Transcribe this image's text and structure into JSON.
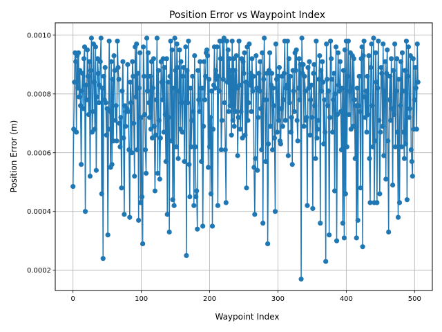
{
  "chart_data": {
    "type": "line",
    "title": "Position Error vs Waypoint Index",
    "xlabel": "Waypoint Index",
    "ylabel": "Position Error (m)",
    "xlim": [
      -26,
      526
    ],
    "ylim": [
      0.000131,
      0.001042
    ],
    "xticks": [
      0,
      100,
      200,
      300,
      400,
      500
    ],
    "xtick_labels": [
      "0",
      "100",
      "200",
      "300",
      "400",
      "500"
    ],
    "yticks": [
      0.0002,
      0.0004,
      0.0006,
      0.0008,
      0.001
    ],
    "ytick_labels": [
      "0.0002",
      "0.0004",
      "0.0006",
      "0.0008",
      "0.0010"
    ],
    "grid": true,
    "marker": "circle",
    "series": [
      {
        "name": "",
        "color": "#1f77b4",
        "x_start": 0,
        "x_step": 1,
        "y": [
          0.000485,
          0.00068,
          0.00084,
          0.00094,
          0.00091,
          0.00067,
          0.00093,
          0.00082,
          0.00094,
          0.00079,
          0.00088,
          0.00076,
          0.00056,
          0.00081,
          0.00087,
          0.00075,
          0.00092,
          0.00096,
          0.0004,
          0.00083,
          0.00078,
          0.00095,
          0.00086,
          0.00073,
          0.00091,
          0.00052,
          0.00088,
          0.00099,
          0.00067,
          0.00074,
          0.00097,
          0.00084,
          0.00068,
          0.00096,
          0.00054,
          0.00079,
          0.00092,
          0.00087,
          0.00077,
          0.00083,
          0.00091,
          0.00099,
          0.00046,
          0.00082,
          0.00024,
          0.00086,
          0.00078,
          0.00089,
          0.00077,
          0.00066,
          0.00075,
          0.00032,
          0.00068,
          0.00098,
          0.00074,
          0.00055,
          0.00091,
          0.00056,
          0.00085,
          0.00064,
          0.00093,
          0.00088,
          0.00071,
          0.00076,
          0.00064,
          0.00098,
          0.00089,
          0.00085,
          0.0007,
          0.00062,
          0.00072,
          0.00048,
          0.00081,
          0.00091,
          0.00065,
          0.00039,
          0.00076,
          0.00069,
          0.00074,
          0.00075,
          0.0009,
          0.00074,
          0.00061,
          0.00038,
          0.00084,
          0.00077,
          0.0006,
          0.00091,
          0.00086,
          0.0007,
          0.00052,
          0.00096,
          0.00079,
          0.00097,
          0.00061,
          0.00087,
          0.00037,
          0.00082,
          0.00094,
          0.00043,
          0.00072,
          0.00045,
          0.00029,
          0.00096,
          0.00086,
          0.00073,
          0.00061,
          0.00053,
          0.00099,
          0.00081,
          0.00094,
          0.00077,
          0.00072,
          0.00086,
          0.00068,
          0.00091,
          0.00065,
          0.00082,
          0.00092,
          0.00069,
          0.00047,
          0.00066,
          0.00078,
          0.00099,
          0.00053,
          0.00088,
          0.00071,
          0.00051,
          0.00065,
          0.00091,
          0.00084,
          0.00078,
          0.00092,
          0.00067,
          0.00089,
          0.00073,
          0.00057,
          0.00092,
          0.00039,
          0.00084,
          0.00072,
          0.00033,
          0.00086,
          0.00098,
          0.00064,
          0.00095,
          0.00044,
          0.00082,
          0.00042,
          0.00099,
          0.00088,
          0.00062,
          0.00097,
          0.00089,
          0.00058,
          0.00081,
          0.00095,
          0.00068,
          0.00091,
          0.00077,
          0.00067,
          0.00086,
          0.00089,
          0.00057,
          0.00077,
          0.00096,
          0.00025,
          0.00088,
          0.00077,
          0.00098,
          0.00056,
          0.00045,
          0.00082,
          0.00062,
          0.00071,
          0.00086,
          0.00074,
          0.00042,
          0.00093,
          0.00062,
          0.00045,
          0.00047,
          0.00034,
          0.00088,
          0.00078,
          0.00074,
          0.00091,
          0.00082,
          0.00057,
          0.00082,
          0.00035,
          0.00069,
          0.00091,
          0.00078,
          0.00086,
          0.00094,
          0.00095,
          0.00093,
          0.00055,
          0.00085,
          0.00062,
          0.00072,
          0.00046,
          0.00081,
          0.00035,
          0.00068,
          0.00083,
          0.00096,
          0.00082,
          0.00088,
          0.00085,
          0.00096,
          0.00042,
          0.00086,
          0.00081,
          0.00098,
          0.00092,
          0.00061,
          0.00071,
          0.00098,
          0.00085,
          0.00099,
          0.00077,
          0.00061,
          0.00043,
          0.00098,
          0.00084,
          0.00095,
          0.00074,
          0.00092,
          0.00076,
          0.00088,
          0.00066,
          0.00098,
          0.00071,
          0.00092,
          0.00069,
          0.00088,
          0.00074,
          0.00093,
          0.00082,
          0.00059,
          0.00072,
          0.00098,
          0.00083,
          0.00068,
          0.00074,
          0.00092,
          0.00065,
          0.00091,
          0.00087,
          0.00094,
          0.00066,
          0.00084,
          0.00048,
          0.00096,
          0.00071,
          0.00077,
          0.00097,
          0.00083,
          0.00087,
          0.00074,
          0.00092,
          0.00081,
          0.00086,
          0.00055,
          0.00039,
          0.00058,
          0.00093,
          0.00082,
          0.00054,
          0.00072,
          0.00087,
          0.00081,
          0.00091,
          0.00075,
          0.00061,
          0.00094,
          0.00036,
          0.00085,
          0.00099,
          0.00078,
          0.00057,
          0.00078,
          0.00087,
          0.00029,
          0.00063,
          0.00088,
          0.00094,
          0.00069,
          0.00083,
          0.00087,
          0.00061,
          0.00082,
          0.00076,
          0.00065,
          0.0004,
          0.00097,
          0.00085,
          0.00067,
          0.00086,
          0.00071,
          0.00089,
          0.00064,
          0.00063,
          0.00075,
          0.00086,
          0.00069,
          0.00078,
          0.00087,
          0.00098,
          0.00071,
          0.00082,
          0.00083,
          0.00098,
          0.00059,
          0.00092,
          0.00077,
          0.00086,
          0.00067,
          0.00072,
          0.00056,
          0.00088,
          0.00081,
          0.00074,
          0.00094,
          0.00088,
          0.00095,
          0.00071,
          0.00064,
          0.00082,
          0.00092,
          0.00078,
          0.0009,
          0.00017,
          0.00099,
          0.00087,
          0.0009,
          0.00069,
          0.00086,
          0.00081,
          0.00071,
          0.00072,
          0.00042,
          0.00089,
          0.00082,
          0.00091,
          0.00066,
          0.00078,
          0.00083,
          0.00072,
          0.00041,
          0.00087,
          0.0009,
          0.00076,
          0.00058,
          0.00098,
          0.00065,
          0.00068,
          0.00071,
          0.00085,
          0.00093,
          0.00036,
          0.00088,
          0.00081,
          0.00091,
          0.00084,
          0.00063,
          0.00078,
          0.00067,
          0.00023,
          0.00097,
          0.00085,
          0.00076,
          0.00081,
          0.00032,
          0.00072,
          0.00098,
          0.00092,
          0.00085,
          0.00067,
          0.00078,
          0.00087,
          0.00047,
          0.0008,
          0.00096,
          0.0003,
          0.00073,
          0.00094,
          0.00083,
          0.00081,
          0.00091,
          0.00074,
          0.00061,
          0.00082,
          0.00036,
          0.00088,
          0.00031,
          0.00095,
          0.00046,
          0.00098,
          0.00062,
          0.00086,
          0.00098,
          0.00073,
          0.00081,
          0.00094,
          0.00068,
          0.00082,
          0.00093,
          0.00069,
          0.00092,
          0.00078,
          0.00058,
          0.00076,
          0.00031,
          0.00082,
          0.00037,
          0.00076,
          0.00086,
          0.00074,
          0.00048,
          0.00092,
          0.00096,
          0.00028,
          0.00093,
          0.00098,
          0.00079,
          0.00072,
          0.00081,
          0.00067,
          0.00086,
          0.00073,
          0.00093,
          0.00058,
          0.00043,
          0.00089,
          0.00097,
          0.00076,
          0.00062,
          0.00099,
          0.00043,
          0.00064,
          0.00094,
          0.00084,
          0.00043,
          0.00082,
          0.00098,
          0.00071,
          0.00046,
          0.00067,
          0.00089,
          0.00087,
          0.00069,
          0.00097,
          0.00059,
          0.00081,
          0.00091,
          0.00051,
          0.00087,
          0.00095,
          0.00064,
          0.00033,
          0.00078,
          0.00086,
          0.00071,
          0.00092,
          0.00075,
          0.00049,
          0.00088,
          0.00073,
          0.00097,
          0.00062,
          0.00081,
          0.00092,
          0.00067,
          0.00038,
          0.00085,
          0.00043,
          0.00076,
          0.00091,
          0.00062,
          0.00094,
          0.00081,
          0.00067,
          0.00058,
          0.00088,
          0.00063,
          0.00098,
          0.00044,
          0.00086,
          0.00096,
          0.00072,
          0.00075,
          0.00093,
          0.00061,
          0.00057,
          0.00052,
          0.00092,
          0.00068,
          0.00078,
          0.00089,
          0.00082,
          0.00068,
          0.00097,
          0.00084
        ]
      }
    ]
  }
}
